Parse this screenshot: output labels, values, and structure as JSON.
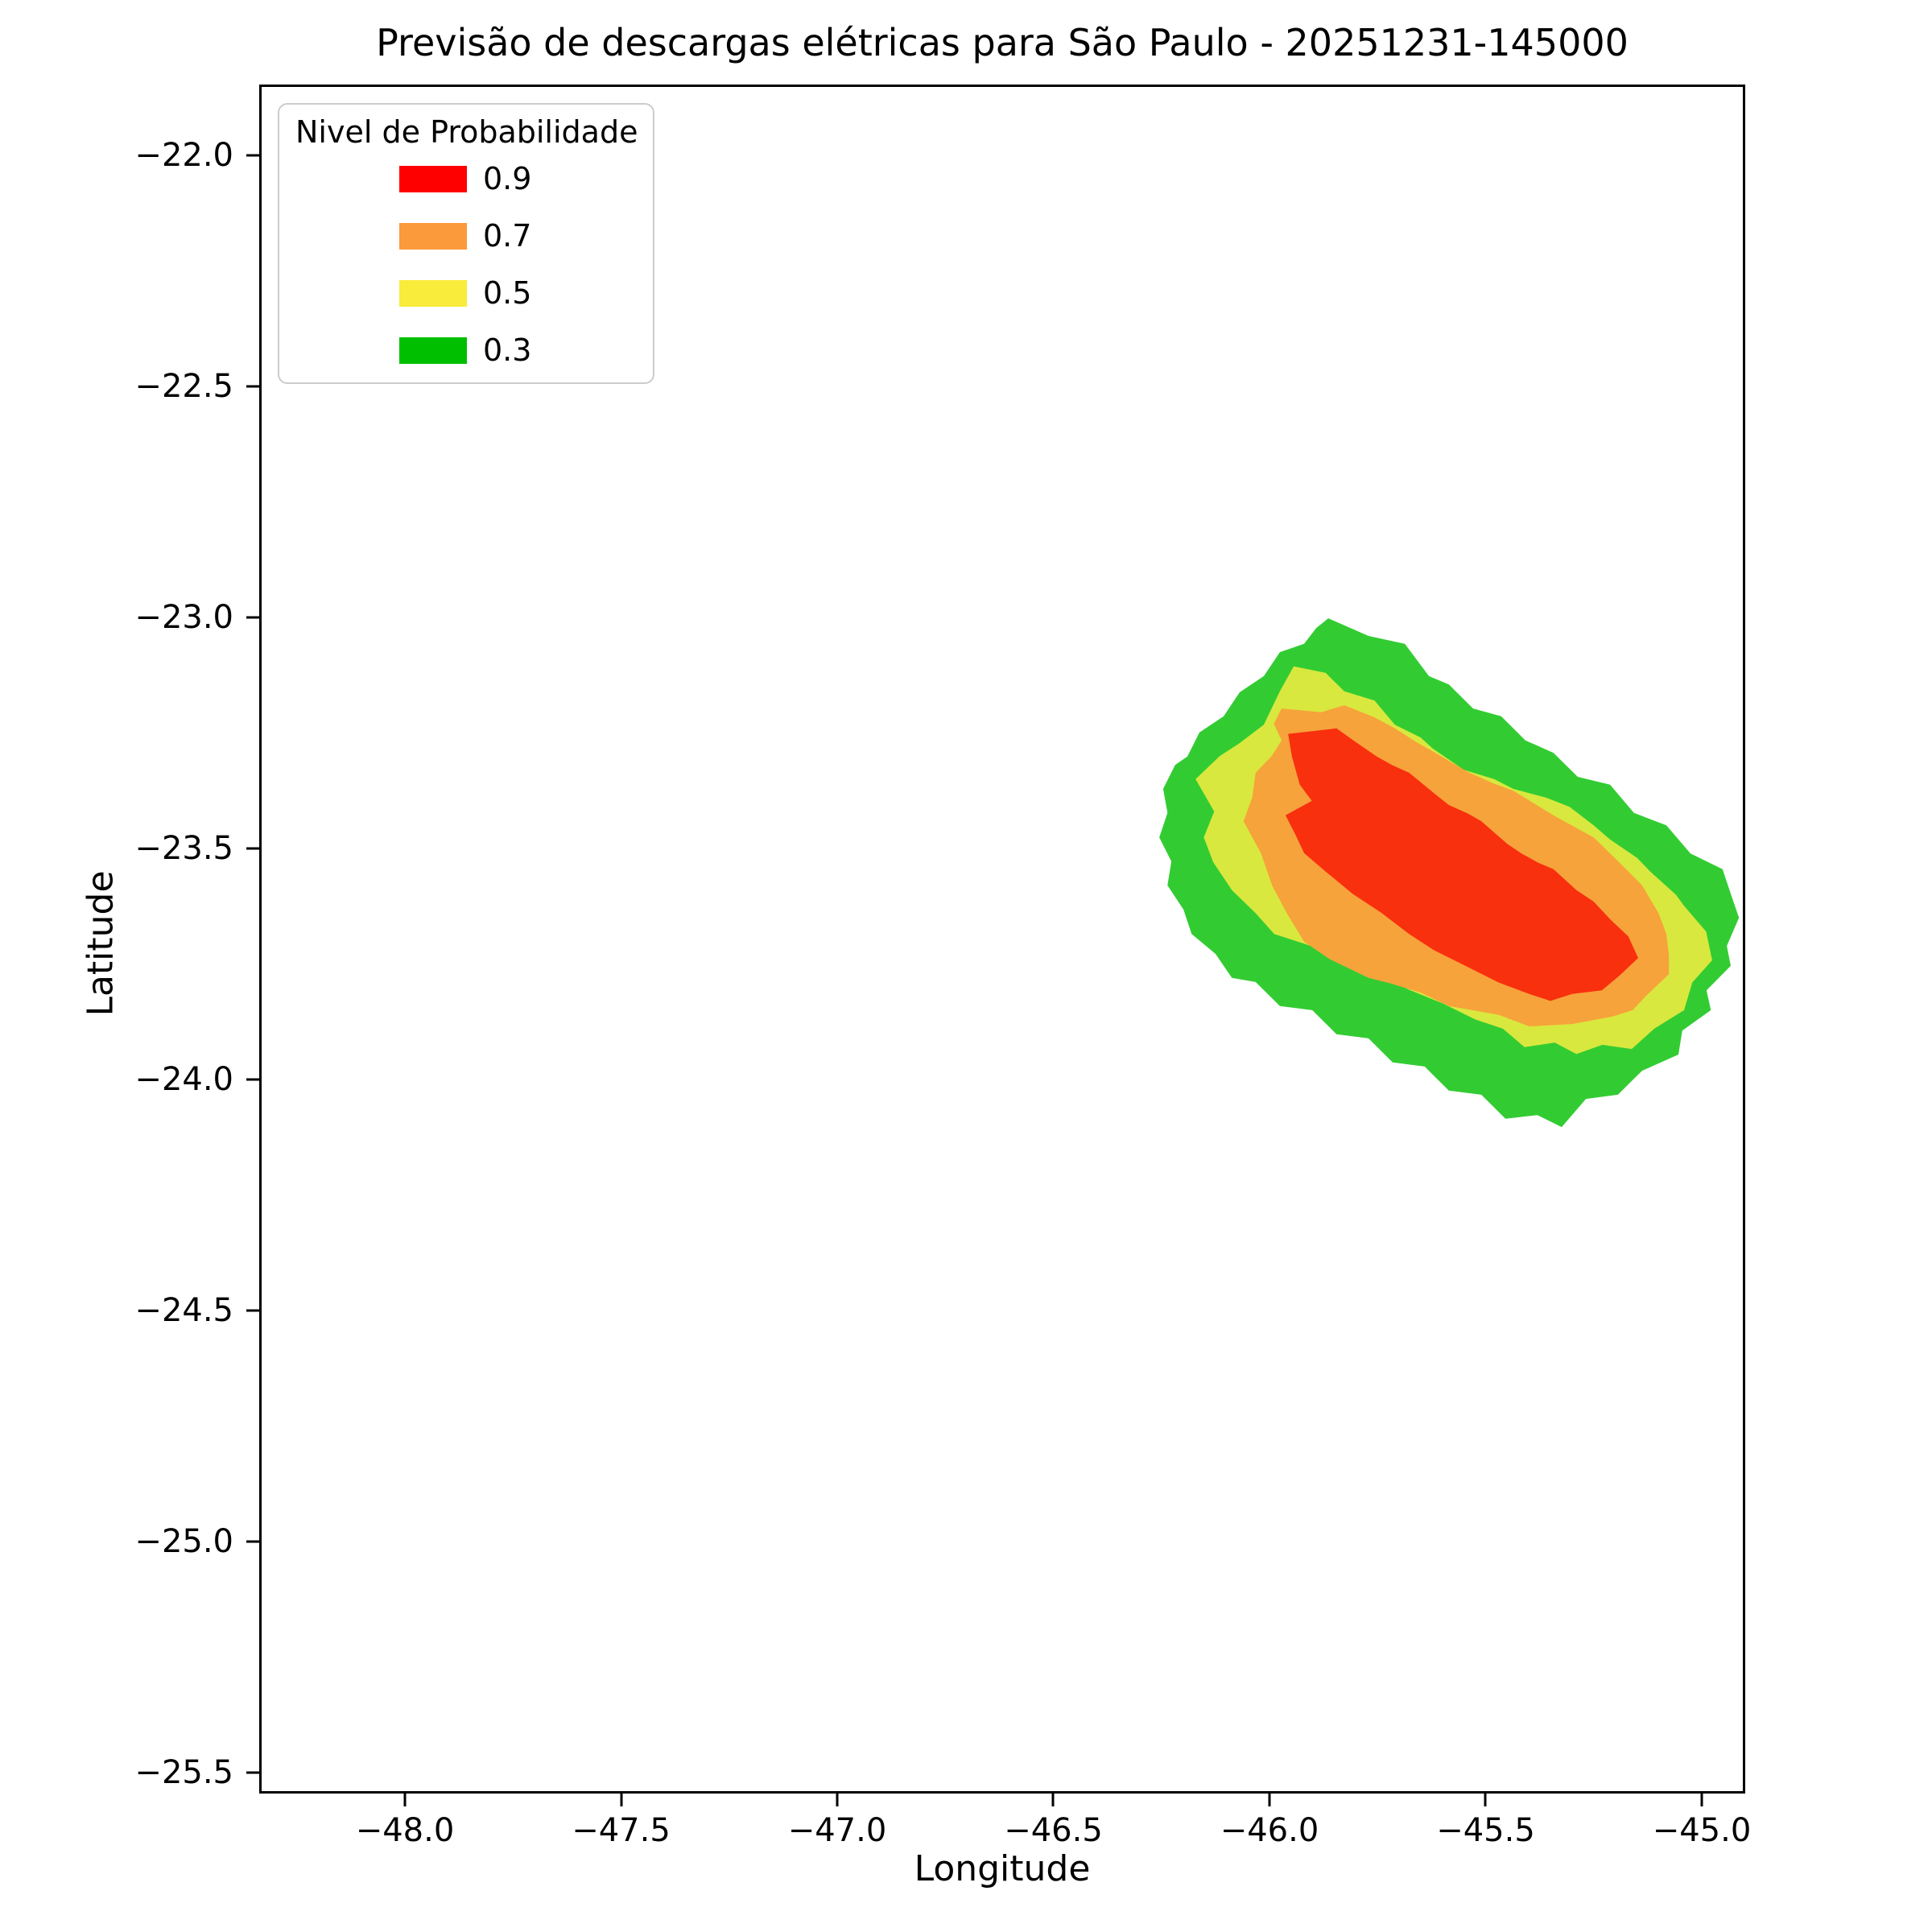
{
  "figure": {
    "background": "#ffffff"
  },
  "chart_data": {
    "type": "contour",
    "title": "Previsão de descargas elétricas para São Paulo - 20251231-145000",
    "xlabel": "Longitude",
    "ylabel": "Latitude",
    "xlim": [
      -48.3315,
      -44.905
    ],
    "ylim": [
      -25.5401,
      -21.8519
    ],
    "grid": false,
    "xticks": {
      "values": [
        -48.0,
        -47.5,
        -47.0,
        -46.5,
        -46.0,
        -45.5,
        -45.0
      ],
      "labels": [
        "−48.0",
        "−47.5",
        "−47.0",
        "−46.5",
        "−46.0",
        "−45.5",
        "−45.0"
      ]
    },
    "yticks": {
      "values": [
        -22.0,
        -22.5,
        -23.0,
        -23.5,
        -24.0,
        -24.5,
        -25.0,
        -25.5
      ],
      "labels": [
        "−22.0",
        "−22.5",
        "−23.0",
        "−23.5",
        "−24.0",
        "−24.5",
        "−25.0",
        "−25.5"
      ]
    },
    "legend": {
      "title": "Nivel de Probabilidade",
      "position": "upper left",
      "entries": [
        {
          "label": "0.9",
          "color": "#FF0000"
        },
        {
          "label": "0.7",
          "color": "#FB9A3B"
        },
        {
          "label": "0.5",
          "color": "#F9EC3B"
        },
        {
          "label": "0.3",
          "color": "#00BF00"
        }
      ]
    },
    "levels": [
      0.3,
      0.5,
      0.7,
      0.9
    ],
    "bands": [
      {
        "level": 0.3,
        "color": "#32CC32",
        "polygon": [
          [
            -45.892,
            -23.023
          ],
          [
            -45.864,
            -23.002
          ],
          [
            -45.771,
            -23.04
          ],
          [
            -45.687,
            -23.057
          ],
          [
            -45.631,
            -23.127
          ],
          [
            -45.585,
            -23.145
          ],
          [
            -45.529,
            -23.197
          ],
          [
            -45.464,
            -23.214
          ],
          [
            -45.408,
            -23.266
          ],
          [
            -45.343,
            -23.293
          ],
          [
            -45.287,
            -23.345
          ],
          [
            -45.212,
            -23.362
          ],
          [
            -45.157,
            -23.423
          ],
          [
            -45.082,
            -23.45
          ],
          [
            -45.026,
            -23.511
          ],
          [
            -44.952,
            -23.545
          ],
          [
            -44.933,
            -23.598
          ],
          [
            -44.914,
            -23.65
          ],
          [
            -44.942,
            -23.711
          ],
          [
            -44.933,
            -23.754
          ],
          [
            -44.989,
            -23.807
          ],
          [
            -44.979,
            -23.85
          ],
          [
            -45.045,
            -23.894
          ],
          [
            -45.054,
            -23.946
          ],
          [
            -45.138,
            -23.981
          ],
          [
            -45.194,
            -24.033
          ],
          [
            -45.268,
            -24.042
          ],
          [
            -45.324,
            -24.103
          ],
          [
            -45.38,
            -24.077
          ],
          [
            -45.454,
            -24.085
          ],
          [
            -45.51,
            -24.033
          ],
          [
            -45.585,
            -24.024
          ],
          [
            -45.641,
            -23.972
          ],
          [
            -45.715,
            -23.963
          ],
          [
            -45.771,
            -23.911
          ],
          [
            -45.845,
            -23.902
          ],
          [
            -45.901,
            -23.85
          ],
          [
            -45.976,
            -23.841
          ],
          [
            -46.032,
            -23.789
          ],
          [
            -46.087,
            -23.78
          ],
          [
            -46.125,
            -23.728
          ],
          [
            -46.18,
            -23.685
          ],
          [
            -46.199,
            -23.632
          ],
          [
            -46.236,
            -23.58
          ],
          [
            -46.227,
            -23.528
          ],
          [
            -46.255,
            -23.476
          ],
          [
            -46.236,
            -23.423
          ],
          [
            -46.246,
            -23.371
          ],
          [
            -46.218,
            -23.319
          ],
          [
            -46.19,
            -23.301
          ],
          [
            -46.162,
            -23.249
          ],
          [
            -46.106,
            -23.214
          ],
          [
            -46.069,
            -23.162
          ],
          [
            -46.013,
            -23.127
          ],
          [
            -45.976,
            -23.075
          ],
          [
            -45.92,
            -23.057
          ]
        ]
      },
      {
        "level": 0.5,
        "color": "#D9E83E",
        "polygon": [
          [
            -45.944,
            -23.106
          ],
          [
            -45.87,
            -23.12
          ],
          [
            -45.827,
            -23.16
          ],
          [
            -45.757,
            -23.18
          ],
          [
            -45.71,
            -23.232
          ],
          [
            -45.65,
            -23.26
          ],
          [
            -45.622,
            -23.284
          ],
          [
            -45.55,
            -23.33
          ],
          [
            -45.48,
            -23.35
          ],
          [
            -45.436,
            -23.371
          ],
          [
            -45.36,
            -23.39
          ],
          [
            -45.306,
            -23.41
          ],
          [
            -45.25,
            -23.45
          ],
          [
            -45.213,
            -23.48
          ],
          [
            -45.15,
            -23.52
          ],
          [
            -45.119,
            -23.55
          ],
          [
            -45.06,
            -23.6
          ],
          [
            -45.041,
            -23.624
          ],
          [
            -44.99,
            -23.68
          ],
          [
            -44.976,
            -23.742
          ],
          [
            -45.022,
            -23.79
          ],
          [
            -45.041,
            -23.85
          ],
          [
            -45.11,
            -23.89
          ],
          [
            -45.162,
            -23.934
          ],
          [
            -45.23,
            -23.925
          ],
          [
            -45.29,
            -23.945
          ],
          [
            -45.34,
            -23.92
          ],
          [
            -45.41,
            -23.93
          ],
          [
            -45.46,
            -23.89
          ],
          [
            -45.524,
            -23.87
          ],
          [
            -45.6,
            -23.835
          ],
          [
            -45.679,
            -23.805
          ],
          [
            -45.74,
            -23.775
          ],
          [
            -45.833,
            -23.74
          ],
          [
            -45.9,
            -23.712
          ],
          [
            -45.989,
            -23.685
          ],
          [
            -46.032,
            -23.64
          ],
          [
            -46.087,
            -23.59
          ],
          [
            -46.13,
            -23.53
          ],
          [
            -46.152,
            -23.476
          ],
          [
            -46.128,
            -23.42
          ],
          [
            -46.171,
            -23.35
          ],
          [
            -46.115,
            -23.3
          ],
          [
            -46.069,
            -23.272
          ],
          [
            -46.013,
            -23.232
          ],
          [
            -45.976,
            -23.16
          ]
        ]
      },
      {
        "level": 0.7,
        "color": "#F6A33B",
        "polygon": [
          [
            -45.972,
            -23.197
          ],
          [
            -45.88,
            -23.205
          ],
          [
            -45.827,
            -23.19
          ],
          [
            -45.76,
            -23.215
          ],
          [
            -45.71,
            -23.24
          ],
          [
            -45.66,
            -23.27
          ],
          [
            -45.622,
            -23.29
          ],
          [
            -45.54,
            -23.335
          ],
          [
            -45.48,
            -23.36
          ],
          [
            -45.436,
            -23.375
          ],
          [
            -45.34,
            -23.43
          ],
          [
            -45.25,
            -23.476
          ],
          [
            -45.18,
            -23.54
          ],
          [
            -45.138,
            -23.58
          ],
          [
            -45.1,
            -23.64
          ],
          [
            -45.082,
            -23.685
          ],
          [
            -45.076,
            -23.73
          ],
          [
            -45.076,
            -23.772
          ],
          [
            -45.13,
            -23.82
          ],
          [
            -45.16,
            -23.85
          ],
          [
            -45.207,
            -23.864
          ],
          [
            -45.3,
            -23.88
          ],
          [
            -45.399,
            -23.885
          ],
          [
            -45.47,
            -23.86
          ],
          [
            -45.585,
            -23.841
          ],
          [
            -45.65,
            -23.812
          ],
          [
            -45.72,
            -23.792
          ],
          [
            -45.771,
            -23.78
          ],
          [
            -45.86,
            -23.74
          ],
          [
            -45.92,
            -23.702
          ],
          [
            -45.96,
            -23.64
          ],
          [
            -45.994,
            -23.58
          ],
          [
            -46.02,
            -23.51
          ],
          [
            -46.06,
            -23.441
          ],
          [
            -46.04,
            -23.39
          ],
          [
            -46.032,
            -23.336
          ],
          [
            -45.995,
            -23.3
          ],
          [
            -45.972,
            -23.266
          ],
          [
            -45.99,
            -23.23
          ]
        ]
      },
      {
        "level": 0.9,
        "color": "#F8300E",
        "polygon": [
          [
            -45.957,
            -23.252
          ],
          [
            -45.89,
            -23.245
          ],
          [
            -45.845,
            -23.24
          ],
          [
            -45.8,
            -23.27
          ],
          [
            -45.752,
            -23.301
          ],
          [
            -45.715,
            -23.32
          ],
          [
            -45.677,
            -23.336
          ],
          [
            -45.62,
            -23.38
          ],
          [
            -45.585,
            -23.406
          ],
          [
            -45.54,
            -23.425
          ],
          [
            -45.51,
            -23.441
          ],
          [
            -45.45,
            -23.49
          ],
          [
            -45.417,
            -23.511
          ],
          [
            -45.38,
            -23.53
          ],
          [
            -45.343,
            -23.545
          ],
          [
            -45.29,
            -23.59
          ],
          [
            -45.25,
            -23.615
          ],
          [
            -45.21,
            -23.655
          ],
          [
            -45.17,
            -23.69
          ],
          [
            -45.147,
            -23.737
          ],
          [
            -45.19,
            -23.775
          ],
          [
            -45.231,
            -23.807
          ],
          [
            -45.3,
            -23.815
          ],
          [
            -45.35,
            -23.83
          ],
          [
            -45.399,
            -23.815
          ],
          [
            -45.47,
            -23.79
          ],
          [
            -45.547,
            -23.754
          ],
          [
            -45.62,
            -23.72
          ],
          [
            -45.677,
            -23.685
          ],
          [
            -45.74,
            -23.64
          ],
          [
            -45.808,
            -23.598
          ],
          [
            -45.87,
            -23.55
          ],
          [
            -45.92,
            -23.51
          ],
          [
            -45.94,
            -23.47
          ],
          [
            -45.963,
            -23.428
          ],
          [
            -45.902,
            -23.397
          ],
          [
            -45.93,
            -23.362
          ],
          [
            -45.948,
            -23.301
          ]
        ]
      }
    ]
  }
}
